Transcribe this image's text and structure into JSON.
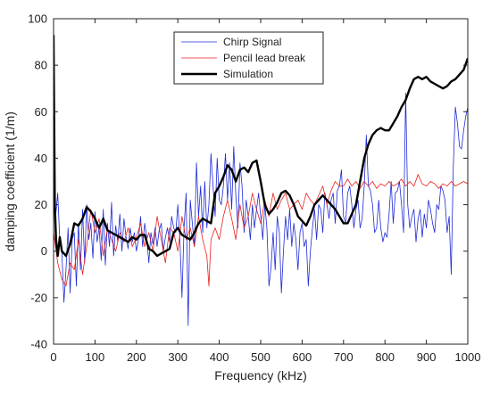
{
  "chart_data": {
    "type": "line",
    "title": "",
    "xlabel": "Frequency (kHz)",
    "ylabel": "damping coefficient (1/m)",
    "xlim": [
      0,
      1000
    ],
    "ylim": [
      -40,
      100
    ],
    "x_ticks": [
      "0",
      "100",
      "200",
      "300",
      "400",
      "500",
      "600",
      "700",
      "800",
      "900",
      "1000"
    ],
    "y_ticks": [
      "-40",
      "-20",
      "0",
      "20",
      "40",
      "60",
      "80",
      "100"
    ],
    "grid": false,
    "legend_position": "top-center",
    "series": [
      {
        "name": "Chirp Signal",
        "color": "#1f2bd6",
        "x": [
          0,
          5,
          10,
          15,
          20,
          25,
          30,
          35,
          40,
          45,
          50,
          55,
          60,
          65,
          70,
          75,
          80,
          85,
          90,
          95,
          100,
          105,
          110,
          115,
          120,
          125,
          130,
          135,
          140,
          145,
          150,
          155,
          160,
          165,
          170,
          175,
          180,
          185,
          190,
          195,
          200,
          205,
          210,
          215,
          220,
          225,
          230,
          235,
          240,
          245,
          250,
          255,
          260,
          265,
          270,
          275,
          280,
          285,
          290,
          295,
          300,
          305,
          310,
          315,
          320,
          325,
          330,
          335,
          340,
          345,
          350,
          355,
          360,
          365,
          370,
          375,
          380,
          385,
          390,
          395,
          400,
          405,
          410,
          415,
          420,
          425,
          430,
          435,
          440,
          445,
          450,
          455,
          460,
          465,
          470,
          475,
          480,
          485,
          490,
          495,
          500,
          505,
          510,
          515,
          520,
          525,
          530,
          535,
          540,
          545,
          550,
          555,
          560,
          565,
          570,
          575,
          580,
          585,
          590,
          595,
          600,
          605,
          610,
          615,
          620,
          625,
          630,
          635,
          640,
          645,
          650,
          655,
          660,
          665,
          670,
          675,
          680,
          685,
          690,
          695,
          700,
          705,
          710,
          715,
          720,
          725,
          730,
          735,
          740,
          745,
          750,
          755,
          760,
          765,
          770,
          775,
          780,
          785,
          790,
          795,
          800,
          805,
          810,
          815,
          820,
          825,
          830,
          835,
          840,
          845,
          850,
          855,
          860,
          865,
          870,
          875,
          880,
          885,
          890,
          895,
          900,
          905,
          910,
          915,
          920,
          925,
          930,
          935,
          940,
          945,
          950,
          955,
          960,
          965,
          970,
          975,
          980,
          985,
          990,
          995,
          1000
        ],
        "y": [
          20,
          15,
          25,
          5,
          0,
          -22,
          -8,
          10,
          -18,
          5,
          8,
          -15,
          12,
          -8,
          18,
          -5,
          20,
          5,
          12,
          -3,
          17,
          4,
          10,
          -4,
          18,
          -6,
          12,
          2,
          21,
          -2,
          11,
          4,
          16,
          0,
          14,
          6,
          1,
          10,
          4,
          8,
          0,
          5,
          15,
          2,
          12,
          6,
          -5,
          8,
          3,
          10,
          2,
          9,
          12,
          0,
          6,
          10,
          4,
          15,
          10,
          8,
          20,
          5,
          -20,
          10,
          25,
          -32,
          22,
          12,
          2,
          38,
          15,
          28,
          8,
          30,
          10,
          20,
          42,
          28,
          15,
          40,
          22,
          20,
          28,
          42,
          22,
          38,
          18,
          45,
          24,
          10,
          38,
          28,
          8,
          22,
          15,
          5,
          20,
          10,
          18,
          25,
          15,
          5,
          20,
          10,
          -15,
          -7,
          8,
          -8,
          15,
          8,
          -18,
          0,
          15,
          5,
          18,
          2,
          12,
          5,
          -8,
          8,
          12,
          2,
          5,
          -15,
          0,
          10,
          18,
          5,
          20,
          18,
          8,
          25,
          20,
          14,
          22,
          25,
          12,
          26,
          28,
          35,
          15,
          12,
          25,
          28,
          20,
          10,
          18,
          22,
          10,
          14,
          28,
          50,
          28,
          26,
          20,
          8,
          10,
          22,
          10,
          4,
          8,
          6,
          16,
          30,
          12,
          25,
          26,
          30,
          20,
          8,
          68,
          20,
          10,
          15,
          18,
          4,
          14,
          18,
          6,
          16,
          10,
          22,
          18,
          12,
          8,
          20,
          18,
          28,
          26,
          22,
          8,
          15,
          -10,
          36,
          62,
          55,
          45,
          44,
          52,
          58,
          62
        ]
      },
      {
        "name": "Pencil lead break",
        "color": "#e8211c",
        "x": [
          0,
          10,
          20,
          30,
          40,
          50,
          60,
          70,
          80,
          90,
          100,
          110,
          120,
          130,
          140,
          150,
          160,
          170,
          180,
          190,
          200,
          210,
          220,
          230,
          240,
          250,
          260,
          270,
          280,
          290,
          300,
          310,
          320,
          330,
          340,
          350,
          360,
          370,
          375,
          380,
          390,
          400,
          410,
          420,
          430,
          440,
          450,
          460,
          470,
          480,
          490,
          500,
          510,
          520,
          530,
          540,
          550,
          560,
          570,
          580,
          590,
          600,
          610,
          620,
          630,
          640,
          650,
          660,
          670,
          680,
          690,
          700,
          710,
          720,
          730,
          740,
          750,
          760,
          770,
          780,
          790,
          800,
          810,
          820,
          830,
          840,
          850,
          860,
          870,
          880,
          890,
          900,
          910,
          920,
          930,
          940,
          950,
          960,
          970,
          980,
          990,
          1000
        ],
        "y": [
          8,
          -5,
          -12,
          -15,
          -5,
          -8,
          5,
          -10,
          2,
          18,
          8,
          14,
          -2,
          10,
          5,
          0,
          8,
          4,
          10,
          2,
          6,
          12,
          2,
          8,
          0,
          15,
          5,
          -5,
          10,
          8,
          0,
          15,
          5,
          10,
          2,
          15,
          5,
          -2,
          -15,
          5,
          10,
          5,
          15,
          22,
          14,
          5,
          20,
          10,
          15,
          25,
          18,
          12,
          22,
          15,
          25,
          18,
          22,
          25,
          18,
          20,
          22,
          18,
          25,
          22,
          20,
          24,
          28,
          20,
          26,
          30,
          28,
          28,
          31,
          28,
          30,
          27,
          30,
          28,
          30,
          27,
          29,
          28,
          30,
          28,
          29,
          31,
          28,
          30,
          28,
          33,
          29,
          28,
          30,
          29,
          27,
          29,
          28,
          30,
          28,
          29,
          30,
          29
        ]
      },
      {
        "name": "Simulation",
        "color": "#000000",
        "x": [
          0,
          3,
          6,
          10,
          15,
          20,
          30,
          40,
          50,
          60,
          70,
          80,
          90,
          100,
          110,
          120,
          130,
          140,
          150,
          160,
          170,
          180,
          190,
          200,
          210,
          220,
          230,
          240,
          250,
          260,
          270,
          280,
          290,
          300,
          310,
          320,
          330,
          340,
          350,
          360,
          370,
          380,
          390,
          400,
          410,
          420,
          430,
          440,
          450,
          460,
          470,
          480,
          490,
          500,
          510,
          520,
          530,
          540,
          550,
          560,
          570,
          580,
          590,
          600,
          610,
          620,
          630,
          640,
          650,
          660,
          670,
          680,
          690,
          700,
          710,
          720,
          730,
          740,
          750,
          760,
          770,
          780,
          790,
          800,
          810,
          820,
          830,
          840,
          850,
          860,
          870,
          880,
          890,
          900,
          910,
          920,
          930,
          940,
          950,
          960,
          970,
          980,
          990,
          1000
        ],
        "y": [
          93,
          20,
          5,
          -2,
          6,
          0,
          -2,
          3,
          12,
          11,
          14,
          19,
          17,
          14,
          10,
          14,
          9,
          8,
          7,
          6,
          5,
          4,
          6,
          5,
          7,
          7,
          1,
          0,
          -2,
          -1,
          0,
          1,
          8,
          10,
          7,
          6,
          5,
          8,
          12,
          14,
          13,
          12,
          25,
          28,
          32,
          37,
          35,
          30,
          35,
          36,
          34,
          38,
          39,
          30,
          20,
          16,
          18,
          21,
          25,
          26,
          24,
          20,
          15,
          13,
          11,
          15,
          20,
          22,
          24,
          22,
          20,
          18,
          15,
          12,
          12,
          16,
          20,
          30,
          40,
          46,
          50,
          52,
          53,
          52,
          52,
          55,
          58,
          62,
          65,
          70,
          74,
          75,
          74,
          75,
          73,
          72,
          71,
          70,
          71,
          73,
          74,
          76,
          78,
          83
        ]
      }
    ]
  }
}
